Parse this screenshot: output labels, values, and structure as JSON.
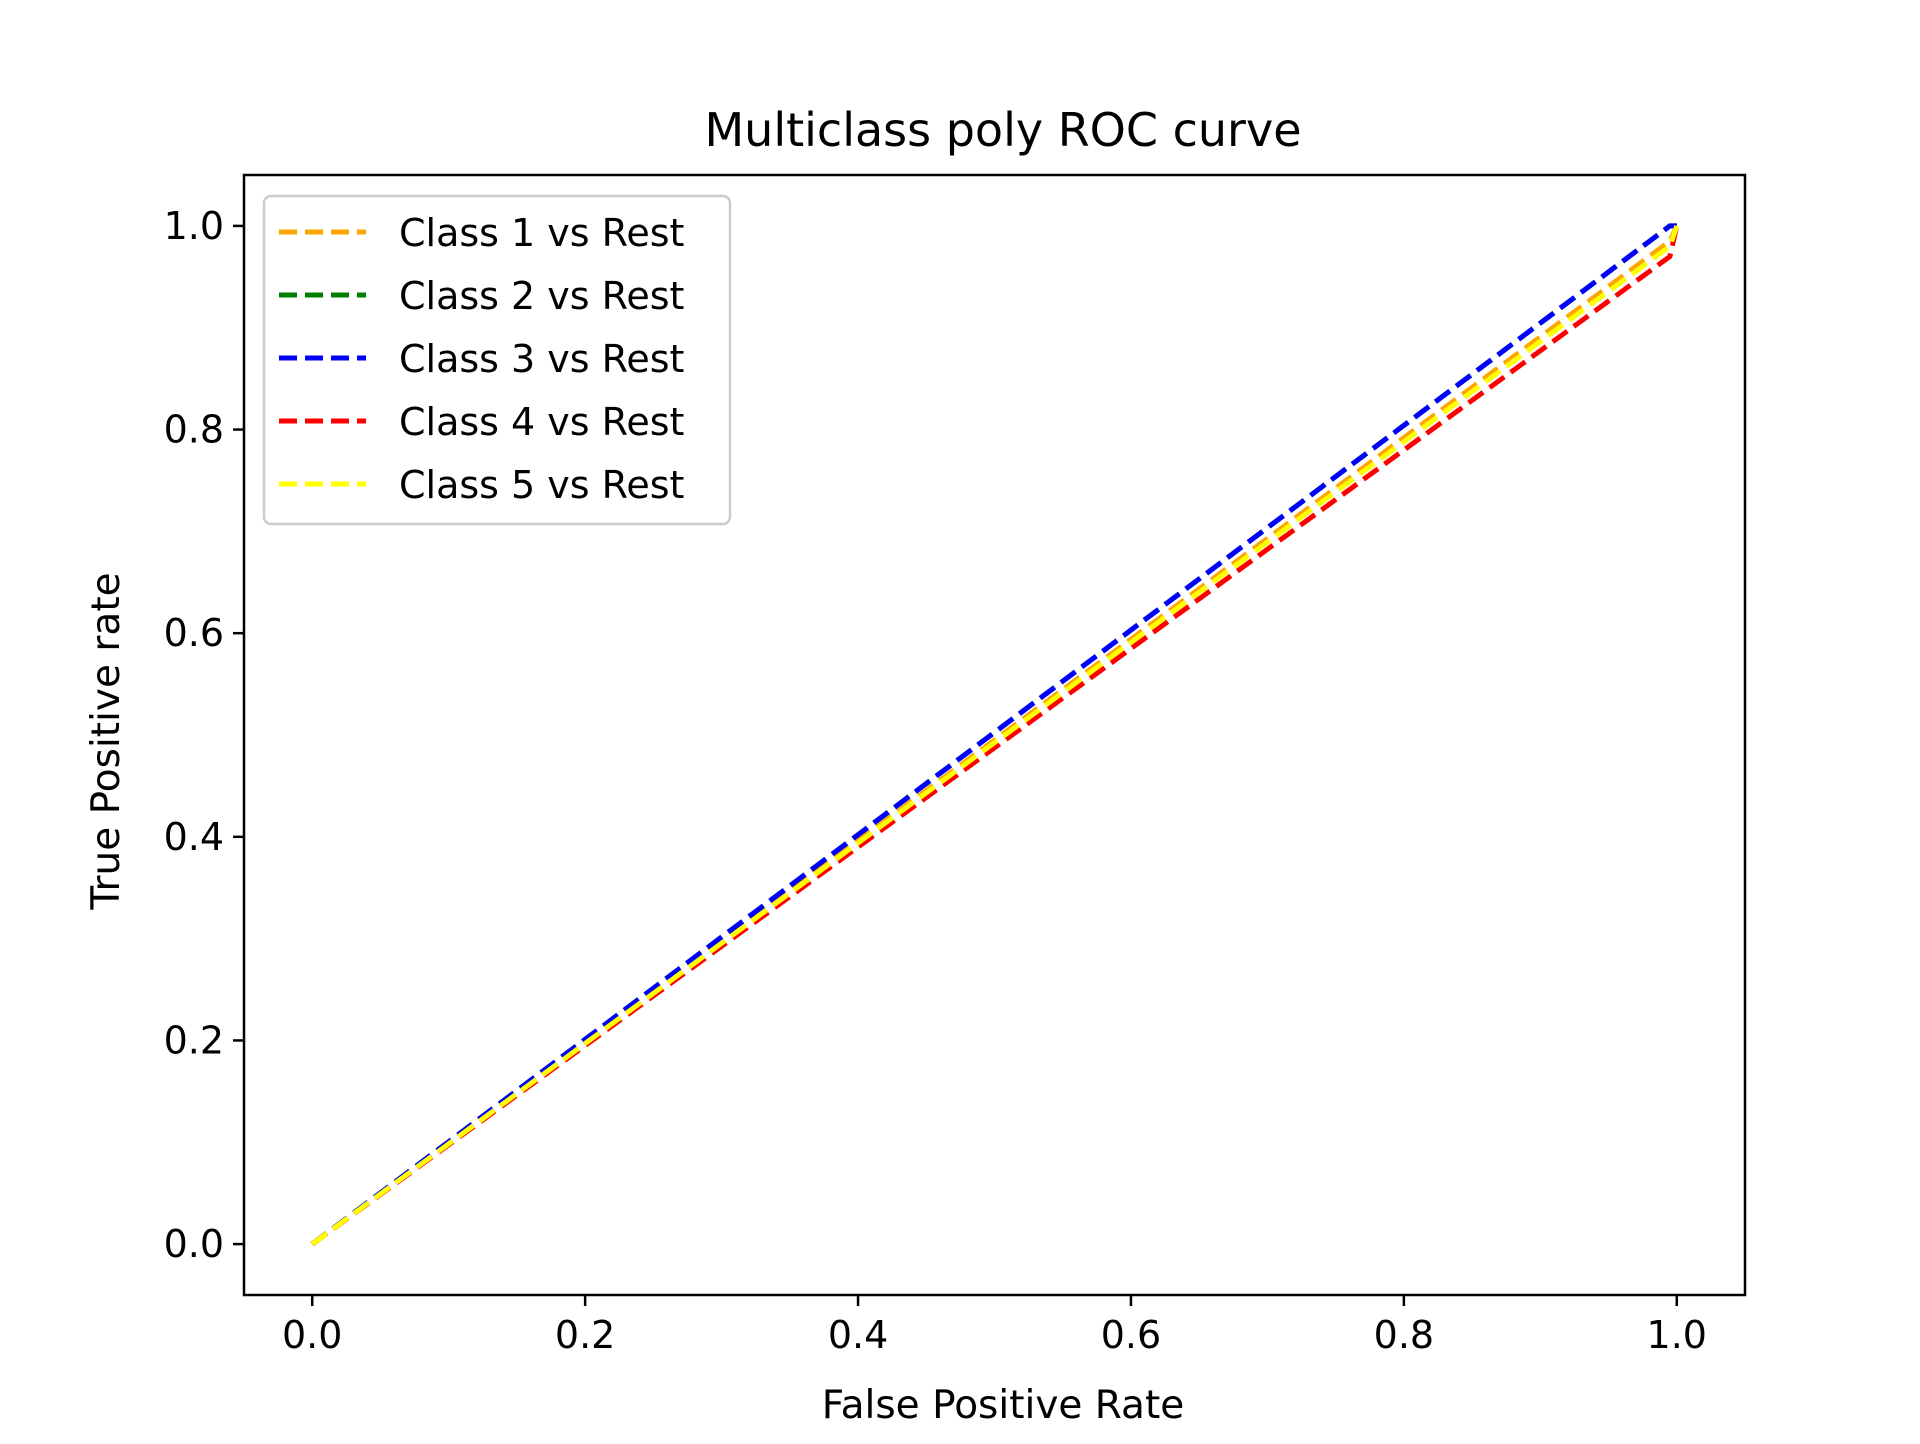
{
  "chart_data": {
    "type": "line",
    "title": "Multiclass poly ROC curve",
    "xlabel": "False Positive Rate",
    "ylabel": "True Positive rate",
    "xlim": [
      -0.05,
      1.05
    ],
    "ylim": [
      -0.05,
      1.05
    ],
    "xticks": [
      "0.0",
      "0.2",
      "0.4",
      "0.6",
      "0.8",
      "1.0"
    ],
    "yticks": [
      "0.0",
      "0.2",
      "0.4",
      "0.6",
      "0.8",
      "1.0"
    ],
    "grid": false,
    "legend_position": "upper-left",
    "line_style": "dashed",
    "series": [
      {
        "name": "Class 1 vs Rest",
        "color": "#ffa500",
        "x": [
          0.0,
          0.995,
          1.0
        ],
        "y": [
          0.0,
          0.985,
          1.0
        ]
      },
      {
        "name": "Class 2 vs Rest",
        "color": "#008000",
        "x": [
          0.0,
          0.995,
          1.0
        ],
        "y": [
          0.0,
          1.0,
          1.0
        ]
      },
      {
        "name": "Class 3 vs Rest",
        "color": "#0000ff",
        "x": [
          0.0,
          0.995,
          1.0
        ],
        "y": [
          0.0,
          1.0,
          1.0
        ]
      },
      {
        "name": "Class 4 vs Rest",
        "color": "#ff0000",
        "x": [
          0.0,
          0.995,
          1.0
        ],
        "y": [
          0.0,
          0.97,
          1.0
        ]
      },
      {
        "name": "Class 5 vs Rest",
        "color": "#ffff00",
        "x": [
          0.0,
          0.995,
          1.0
        ],
        "y": [
          0.0,
          0.98,
          1.0
        ]
      }
    ]
  }
}
